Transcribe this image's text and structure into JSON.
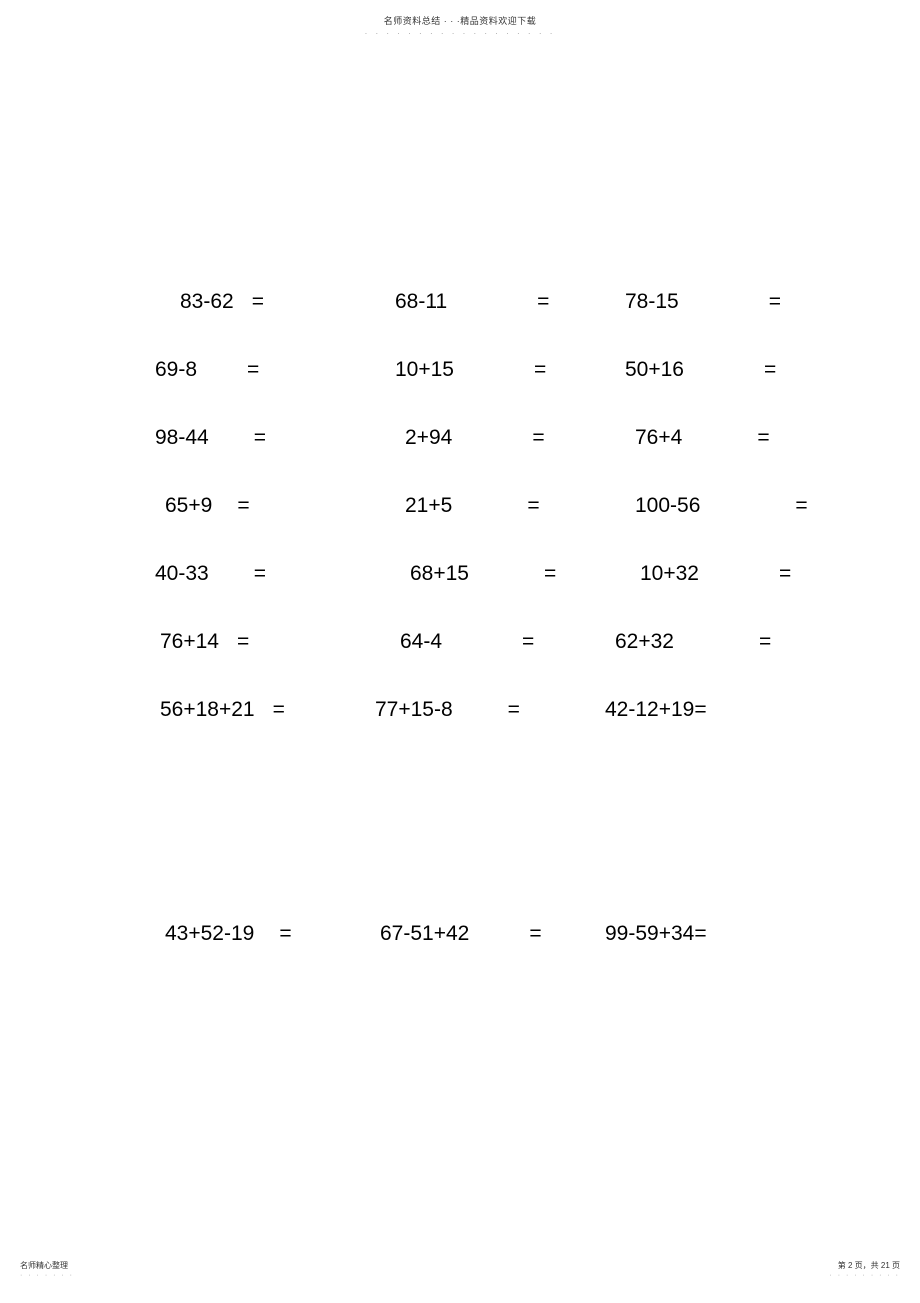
{
  "header": {
    "text": "名师资料总结 · · ·精品资料欢迎下载",
    "dots": "· · · · · · · · · · · · · · · · · ·"
  },
  "rows": [
    {
      "c1": {
        "expr": "83-62",
        "eq": "="
      },
      "c2": {
        "expr": "68-11",
        "eq": "="
      },
      "c3": {
        "expr": "78-15",
        "eq": "="
      }
    },
    {
      "c1": {
        "expr": "69-8",
        "eq": "="
      },
      "c2": {
        "expr": "10+15",
        "eq": "="
      },
      "c3": {
        "expr": "50+16",
        "eq": "="
      }
    },
    {
      "c1": {
        "expr": "98-44",
        "eq": "="
      },
      "c2": {
        "expr": "2+94",
        "eq": "="
      },
      "c3": {
        "expr": "76+4",
        "eq": "="
      }
    },
    {
      "c1": {
        "expr": "65+9",
        "eq": "="
      },
      "c2": {
        "expr": "21+5",
        "eq": "="
      },
      "c3": {
        "expr": "100-56",
        "eq": "="
      }
    },
    {
      "c1": {
        "expr": "40-33",
        "eq": "="
      },
      "c2": {
        "expr": "68+15",
        "eq": "="
      },
      "c3": {
        "expr": "10+32",
        "eq": "="
      }
    },
    {
      "c1": {
        "expr": "76+14",
        "eq": "="
      },
      "c2": {
        "expr": "64-4",
        "eq": "="
      },
      "c3": {
        "expr": "62+32",
        "eq": "="
      }
    },
    {
      "c1": {
        "expr": "56+18+21",
        "eq": "="
      },
      "c2": {
        "expr": "77+15-8",
        "eq": "="
      },
      "c3": {
        "expr": "42-12+19=",
        "eq": ""
      }
    },
    {
      "c1": {
        "expr": "43+52-19",
        "eq": "="
      },
      "c2": {
        "expr": "67-51+42",
        "eq": "="
      },
      "c3": {
        "expr": "99-59+34=",
        "eq": ""
      }
    }
  ],
  "layout": {
    "row0": {
      "c1_expr_ml": 30,
      "c1_eq_ml": 18,
      "c2_expr_ml": 30,
      "c2_eq_ml": 90,
      "c3_expr_ml": 20,
      "c3_eq_ml": 90
    },
    "row1": {
      "c1_expr_ml": 5,
      "c1_eq_ml": 50,
      "c2_expr_ml": 30,
      "c2_eq_ml": 80,
      "c3_expr_ml": 20,
      "c3_eq_ml": 80
    },
    "row2": {
      "c1_expr_ml": 5,
      "c1_eq_ml": 45,
      "c2_expr_ml": 40,
      "c2_eq_ml": 80,
      "c3_expr_ml": 30,
      "c3_eq_ml": 75
    },
    "row3": {
      "c1_expr_ml": 15,
      "c1_eq_ml": 25,
      "c2_expr_ml": 40,
      "c2_eq_ml": 75,
      "c3_expr_ml": 30,
      "c3_eq_ml": 95
    },
    "row4": {
      "c1_expr_ml": 5,
      "c1_eq_ml": 45,
      "c2_expr_ml": 45,
      "c2_eq_ml": 75,
      "c3_expr_ml": 35,
      "c3_eq_ml": 80
    },
    "row5": {
      "c1_expr_ml": 10,
      "c1_eq_ml": 18,
      "c2_expr_ml": 35,
      "c2_eq_ml": 80,
      "c3_expr_ml": 10,
      "c3_eq_ml": 85
    },
    "row6": {
      "c1_expr_ml": 10,
      "c1_eq_ml": 18,
      "c2_expr_ml": 10,
      "c2_eq_ml": 55,
      "c3_expr_ml": 0,
      "c3_eq_ml": 0
    },
    "row7": {
      "c1_expr_ml": 15,
      "c1_eq_ml": 25,
      "c2_expr_ml": 15,
      "c2_eq_ml": 60,
      "c3_expr_ml": 0,
      "c3_eq_ml": 0
    }
  },
  "footer": {
    "left": "名师精心整理",
    "left_dots": "· · · · · · ·",
    "right": "第 2 页，共 21 页",
    "right_dots": "· · · · · · · · ·"
  }
}
